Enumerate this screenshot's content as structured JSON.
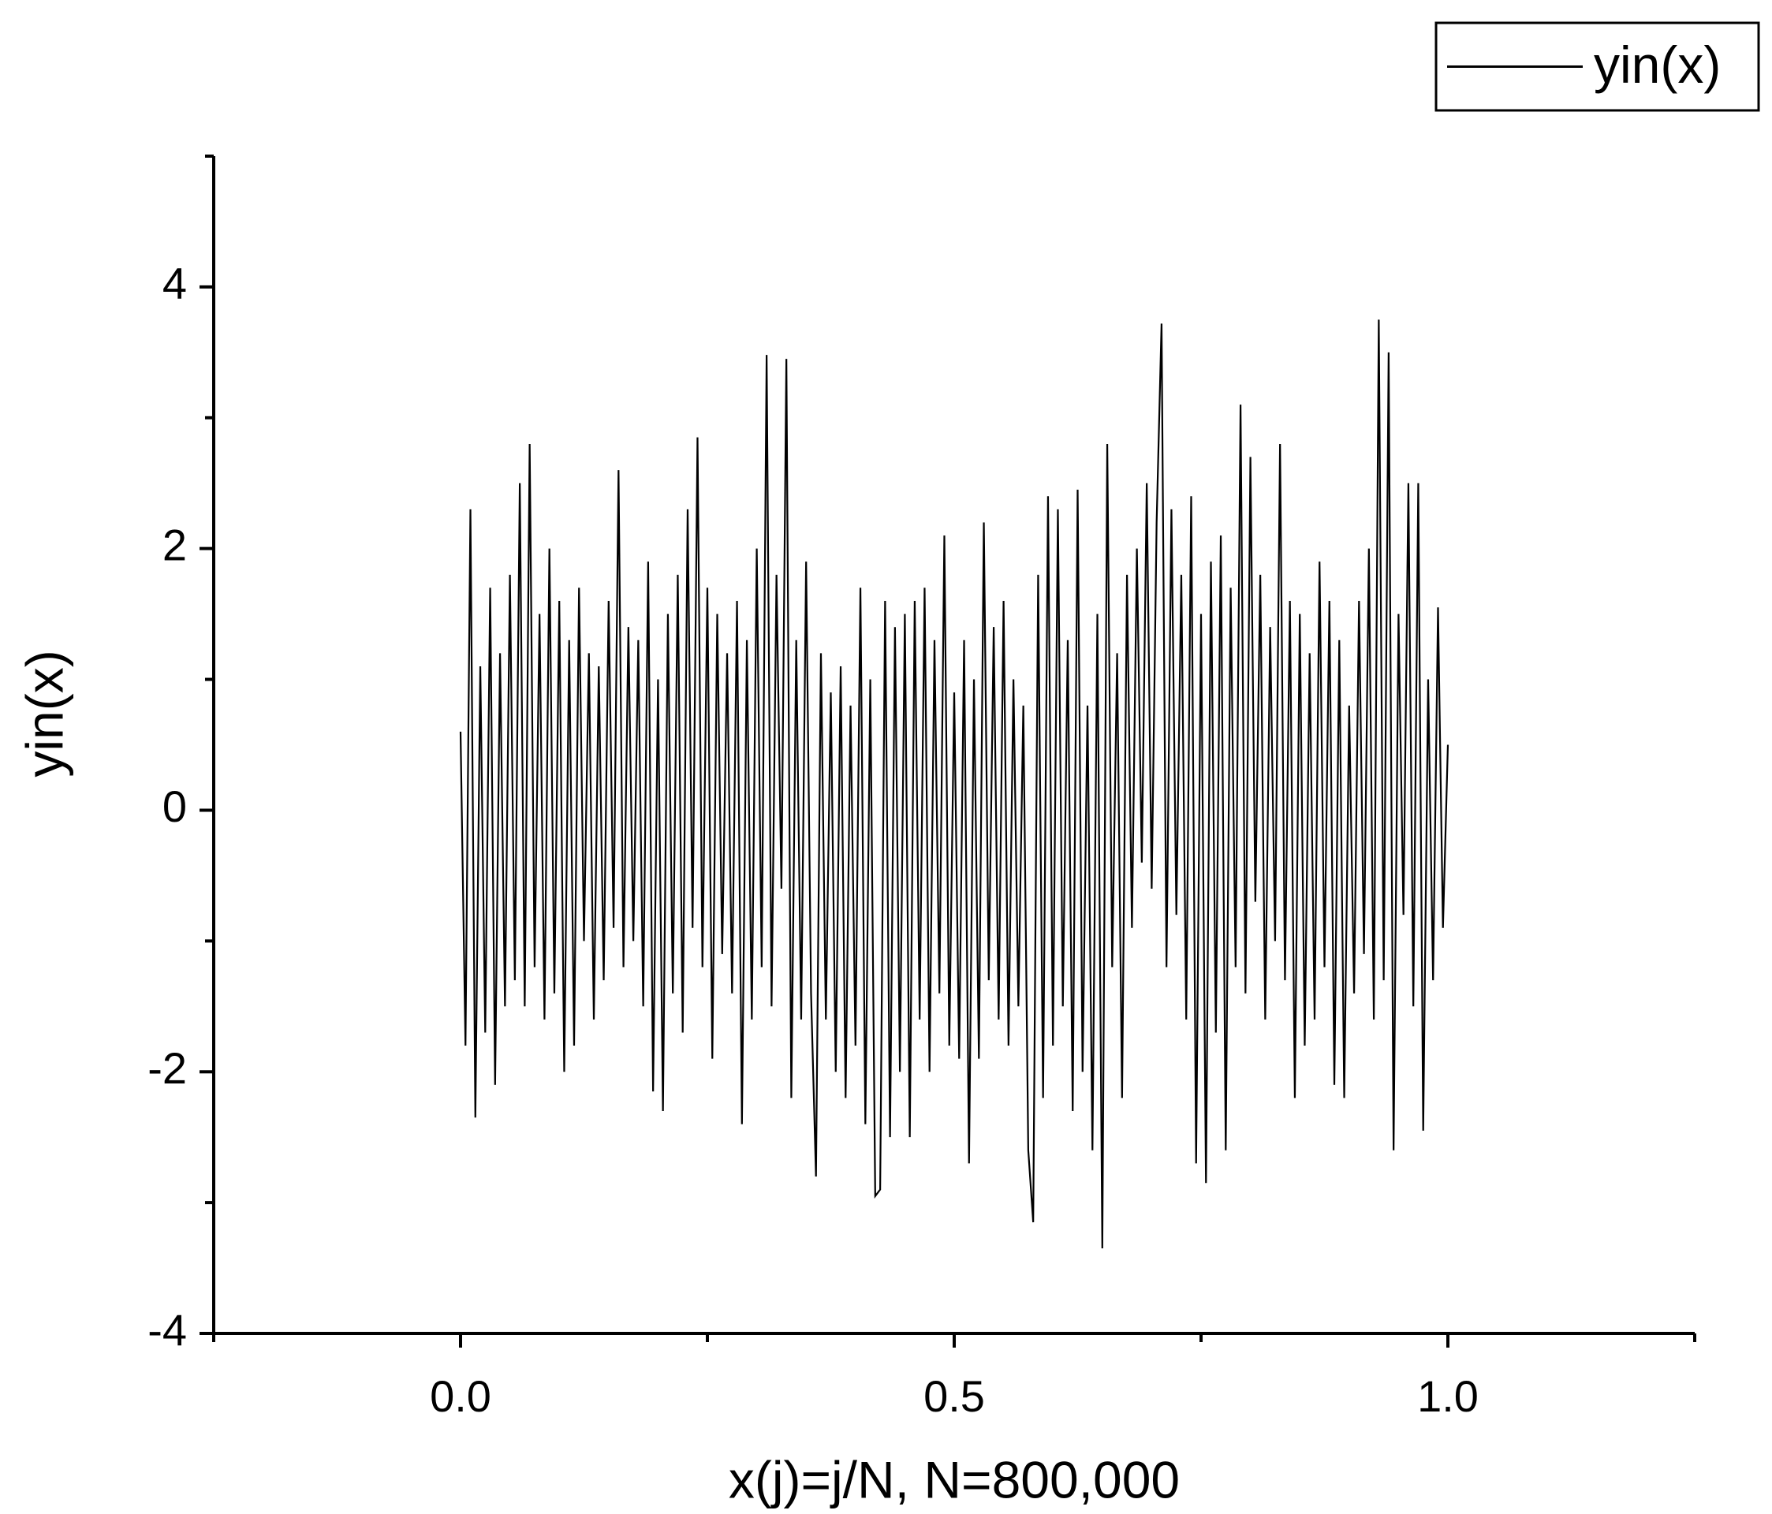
{
  "chart_data": {
    "type": "line",
    "x_label": "x(j)=j/N, N=800,000",
    "y_label": "yin(x)",
    "xlim": [
      -0.25,
      1.25
    ],
    "xticks": [
      {
        "value": 0,
        "label": "0.0"
      },
      0.5,
      {
        "value": 1,
        "label": "1.0"
      }
    ],
    "xminorticks": [
      -0.25,
      0.25,
      0.75,
      1.25
    ],
    "ylim": [
      -4,
      5
    ],
    "yticks": [
      -4,
      -2,
      0,
      2,
      4
    ],
    "yminorticks": [
      -3,
      -1,
      1,
      3,
      5
    ],
    "legend": "top-right",
    "x": [
      0,
      0.005,
      0.01,
      0.015,
      0.02,
      0.025,
      0.03,
      0.035,
      0.04,
      0.045,
      0.05,
      0.055,
      0.06,
      0.065,
      0.07,
      0.075,
      0.08,
      0.085,
      0.09,
      0.095,
      0.1,
      0.105,
      0.11,
      0.115,
      0.12,
      0.125,
      0.13,
      0.135,
      0.14,
      0.145,
      0.15,
      0.155,
      0.16,
      0.165,
      0.17,
      0.175,
      0.18,
      0.185,
      0.19,
      0.195,
      0.2,
      0.205,
      0.21,
      0.215,
      0.22,
      0.225,
      0.23,
      0.235,
      0.24,
      0.245,
      0.25,
      0.255,
      0.26,
      0.265,
      0.27,
      0.275,
      0.28,
      0.285,
      0.29,
      0.295,
      0.3,
      0.305,
      0.31,
      0.315,
      0.32,
      0.325,
      0.33,
      0.335,
      0.34,
      0.345,
      0.35,
      0.355,
      0.36,
      0.365,
      0.37,
      0.375,
      0.38,
      0.385,
      0.39,
      0.395,
      0.4,
      0.405,
      0.41,
      0.415,
      0.42,
      0.425,
      0.43,
      0.435,
      0.44,
      0.445,
      0.45,
      0.455,
      0.46,
      0.465,
      0.47,
      0.475,
      0.48,
      0.485,
      0.49,
      0.495,
      0.5,
      0.505,
      0.51,
      0.515,
      0.52,
      0.525,
      0.53,
      0.535,
      0.54,
      0.545,
      0.55,
      0.555,
      0.56,
      0.565,
      0.57,
      0.575,
      0.58,
      0.585,
      0.59,
      0.595,
      0.6,
      0.605,
      0.61,
      0.615,
      0.62,
      0.625,
      0.63,
      0.635,
      0.64,
      0.645,
      0.65,
      0.655,
      0.66,
      0.665,
      0.67,
      0.675,
      0.68,
      0.685,
      0.69,
      0.695,
      0.7,
      0.705,
      0.71,
      0.715,
      0.72,
      0.725,
      0.73,
      0.735,
      0.74,
      0.745,
      0.75,
      0.755,
      0.76,
      0.765,
      0.77,
      0.775,
      0.78,
      0.785,
      0.79,
      0.795,
      0.8,
      0.805,
      0.81,
      0.815,
      0.82,
      0.825,
      0.83,
      0.835,
      0.84,
      0.845,
      0.85,
      0.855,
      0.86,
      0.865,
      0.87,
      0.875,
      0.88,
      0.885,
      0.89,
      0.895,
      0.9,
      0.905,
      0.91,
      0.915,
      0.92,
      0.925,
      0.93,
      0.935,
      0.94,
      0.945,
      0.95,
      0.955,
      0.96,
      0.965,
      0.97,
      0.975,
      0.98,
      0.985,
      0.99,
      0.995,
      1
    ],
    "series": [
      {
        "name": "yin(x)",
        "color": "#000000",
        "values": [
          0.6,
          -1.8,
          2.3,
          -2.35,
          1.1,
          -1.7,
          1.7,
          -2.1,
          1.2,
          -1.5,
          1.8,
          -1.3,
          2.5,
          -1.5,
          2.8,
          -1.2,
          1.5,
          -1.6,
          2.0,
          -1.4,
          1.6,
          -2.0,
          1.3,
          -1.8,
          1.7,
          -1.0,
          1.2,
          -1.6,
          1.1,
          -1.3,
          1.6,
          -0.9,
          2.6,
          -1.2,
          1.4,
          -1.0,
          1.3,
          -1.5,
          1.9,
          -2.15,
          1.0,
          -2.3,
          1.5,
          -1.4,
          1.8,
          -1.7,
          2.3,
          -0.9,
          2.85,
          -1.2,
          1.7,
          -1.9,
          1.5,
          -1.1,
          1.2,
          -1.4,
          1.6,
          -2.4,
          1.3,
          -1.6,
          2.0,
          -1.2,
          3.48,
          -1.5,
          1.8,
          -0.6,
          3.45,
          -2.2,
          1.3,
          -1.6,
          1.9,
          -1.4,
          -2.8,
          1.2,
          -1.6,
          0.9,
          -2.0,
          1.1,
          -2.2,
          0.8,
          -1.8,
          1.7,
          -2.4,
          1.0,
          -2.95,
          -2.9,
          1.6,
          -2.5,
          1.4,
          -2.0,
          1.5,
          -2.5,
          1.6,
          -1.6,
          1.7,
          -2.0,
          1.3,
          -1.4,
          2.1,
          -1.8,
          0.9,
          -1.9,
          1.3,
          -2.7,
          1.0,
          -1.9,
          2.2,
          -1.3,
          1.4,
          -1.6,
          1.6,
          -1.8,
          1.0,
          -1.5,
          0.8,
          -2.6,
          -3.15,
          1.8,
          -2.2,
          2.4,
          -1.8,
          2.3,
          -1.5,
          1.3,
          -2.3,
          2.45,
          -2.0,
          0.8,
          -2.6,
          1.5,
          -3.35,
          2.8,
          -1.2,
          1.2,
          -2.2,
          1.8,
          -0.9,
          2.0,
          -0.4,
          2.5,
          -0.6,
          2.2,
          3.72,
          -1.2,
          2.3,
          -0.8,
          1.8,
          -1.6,
          2.4,
          -2.7,
          1.5,
          -2.85,
          1.9,
          -1.7,
          2.1,
          -2.6,
          1.7,
          -1.2,
          3.1,
          -1.4,
          2.7,
          -0.7,
          1.8,
          -1.6,
          1.4,
          -1.0,
          2.8,
          -1.3,
          1.6,
          -2.2,
          1.5,
          -1.8,
          1.2,
          -1.6,
          1.9,
          -1.2,
          1.6,
          -2.1,
          1.3,
          -2.2,
          0.8,
          -1.4,
          1.6,
          -1.1,
          2.0,
          -1.6,
          3.75,
          -1.3,
          3.5,
          -2.6,
          1.5,
          -0.8,
          2.5,
          -1.5,
          2.5,
          -2.45,
          1.0,
          -1.3,
          1.55,
          -0.9,
          0.5
        ]
      }
    ]
  }
}
